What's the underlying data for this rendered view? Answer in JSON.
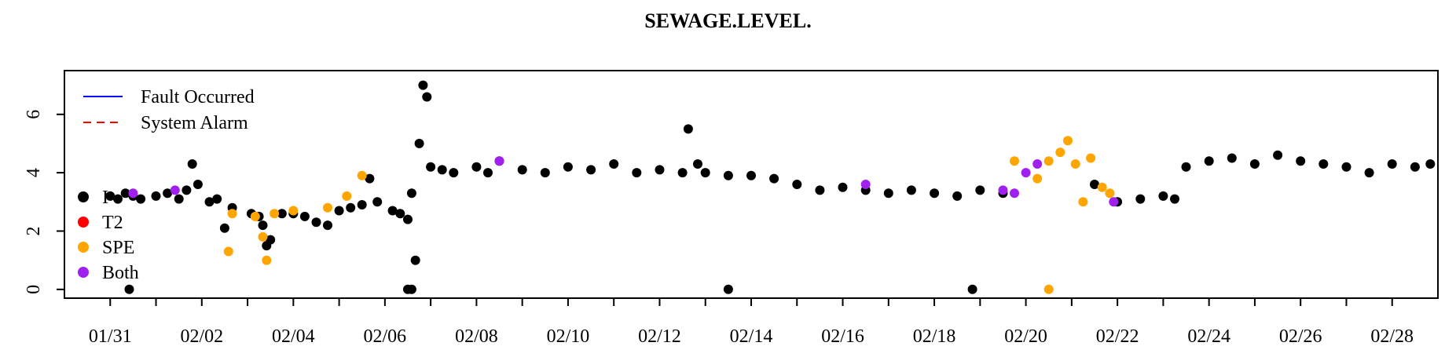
{
  "chart_data": {
    "type": "scatter",
    "title": "SEWAGE.LEVEL.",
    "xlabel": "",
    "ylabel": "",
    "x_range": [
      "01/30",
      "03/01"
    ],
    "ylim": [
      -0.3,
      7.5
    ],
    "x_ticks": [
      "01/31",
      "02/02",
      "02/04",
      "02/06",
      "02/08",
      "02/10",
      "02/12",
      "02/14",
      "02/16",
      "02/18",
      "02/20",
      "02/22",
      "02/24",
      "02/26",
      "02/28"
    ],
    "y_ticks": [
      0,
      2,
      4,
      6
    ],
    "grid": false,
    "legend_lines": [
      {
        "label": "Fault Occurred",
        "color": "#0000ff",
        "style": "solid"
      },
      {
        "label": "System Alarm",
        "color": "#ff0000",
        "style": "dashed"
      }
    ],
    "legend_points": [
      {
        "label": "I",
        "color": "#000000"
      },
      {
        "label": "T2",
        "color": "#ff0000"
      },
      {
        "label": "SPE",
        "color": "#ffa500"
      },
      {
        "label": "Both",
        "color": "#a020f0"
      }
    ],
    "series": [
      {
        "name": "I",
        "color": "#000000",
        "points": [
          [
            "01/31 00:00",
            3.2
          ],
          [
            "01/31 04:00",
            3.1
          ],
          [
            "01/31 08:00",
            3.3
          ],
          [
            "01/31 12:00",
            3.2
          ],
          [
            "01/31 16:00",
            3.1
          ],
          [
            "02/01 00:00",
            3.2
          ],
          [
            "02/01 06:00",
            3.3
          ],
          [
            "02/01 12:00",
            3.1
          ],
          [
            "02/01 16:00",
            3.4
          ],
          [
            "02/01 19:00",
            4.3
          ],
          [
            "02/01 22:00",
            3.6
          ],
          [
            "02/02 04:00",
            3.0
          ],
          [
            "02/02 08:00",
            3.1
          ],
          [
            "02/02 12:00",
            2.1
          ],
          [
            "02/02 16:00",
            2.8
          ],
          [
            "02/03 02:00",
            2.6
          ],
          [
            "02/03 06:00",
            2.5
          ],
          [
            "02/03 08:00",
            2.2
          ],
          [
            "02/03 10:00",
            1.5
          ],
          [
            "02/03 12:00",
            1.7
          ],
          [
            "02/03 18:00",
            2.6
          ],
          [
            "02/04 00:00",
            2.6
          ],
          [
            "02/04 06:00",
            2.5
          ],
          [
            "02/04 12:00",
            2.3
          ],
          [
            "02/04 18:00",
            2.2
          ],
          [
            "02/05 00:00",
            2.7
          ],
          [
            "02/05 06:00",
            2.8
          ],
          [
            "02/05 12:00",
            2.9
          ],
          [
            "02/05 16:00",
            3.8
          ],
          [
            "02/05 20:00",
            3.0
          ],
          [
            "02/06 04:00",
            2.7
          ],
          [
            "02/06 08:00",
            2.6
          ],
          [
            "02/06 12:00",
            2.4
          ],
          [
            "02/06 14:00",
            3.3
          ],
          [
            "02/06 18:00",
            5.0
          ],
          [
            "02/06 20:00",
            7.0
          ],
          [
            "02/06 22:00",
            6.6
          ],
          [
            "02/07 00:00",
            4.2
          ],
          [
            "02/07 06:00",
            4.1
          ],
          [
            "02/07 12:00",
            4.0
          ],
          [
            "02/08 00:00",
            4.2
          ],
          [
            "02/08 06:00",
            4.0
          ],
          [
            "02/08 12:00",
            4.4
          ],
          [
            "02/09 00:00",
            4.1
          ],
          [
            "02/09 12:00",
            4.0
          ],
          [
            "02/10 00:00",
            4.2
          ],
          [
            "02/10 12:00",
            4.1
          ],
          [
            "02/11 00:00",
            4.3
          ],
          [
            "02/11 12:00",
            4.0
          ],
          [
            "02/12 00:00",
            4.1
          ],
          [
            "02/12 12:00",
            4.0
          ],
          [
            "02/12 15:00",
            5.5
          ],
          [
            "02/12 20:00",
            4.3
          ],
          [
            "02/13 00:00",
            4.0
          ],
          [
            "02/13 12:00",
            3.9
          ],
          [
            "02/14 00:00",
            3.9
          ],
          [
            "02/14 12:00",
            3.8
          ],
          [
            "02/15 00:00",
            3.6
          ],
          [
            "02/15 12:00",
            3.4
          ],
          [
            "02/16 00:00",
            3.5
          ],
          [
            "02/16 12:00",
            3.4
          ],
          [
            "02/17 00:00",
            3.3
          ],
          [
            "02/17 12:00",
            3.4
          ],
          [
            "02/18 00:00",
            3.3
          ],
          [
            "02/18 12:00",
            3.2
          ],
          [
            "02/19 00:00",
            3.4
          ],
          [
            "02/19 12:00",
            3.3
          ],
          [
            "02/21 12:00",
            3.6
          ],
          [
            "02/22 00:00",
            3.0
          ],
          [
            "02/22 12:00",
            3.1
          ],
          [
            "02/23 00:00",
            3.2
          ],
          [
            "02/23 06:00",
            3.1
          ],
          [
            "02/23 12:00",
            4.2
          ],
          [
            "02/24 00:00",
            4.4
          ],
          [
            "02/24 12:00",
            4.5
          ],
          [
            "02/25 00:00",
            4.3
          ],
          [
            "02/25 12:00",
            4.6
          ],
          [
            "02/26 00:00",
            4.4
          ],
          [
            "02/26 12:00",
            4.3
          ],
          [
            "02/27 00:00",
            4.2
          ],
          [
            "02/27 12:00",
            4.0
          ],
          [
            "02/28 00:00",
            4.3
          ],
          [
            "02/28 12:00",
            4.2
          ],
          [
            "02/28 20:00",
            4.3
          ],
          [
            "01/31 10:00",
            0.0
          ],
          [
            "02/06 12:00",
            0.0
          ],
          [
            "02/06 14:00",
            0.0
          ],
          [
            "02/06 16:00",
            1.0
          ],
          [
            "02/13 12:00",
            0.0
          ],
          [
            "02/18 20:00",
            0.0
          ]
        ]
      },
      {
        "name": "T2",
        "color": "#ff0000",
        "points": []
      },
      {
        "name": "SPE",
        "color": "#ffa500",
        "points": [
          [
            "02/02 14:00",
            1.3
          ],
          [
            "02/02 16:00",
            2.6
          ],
          [
            "02/03 04:00",
            2.5
          ],
          [
            "02/03 08:00",
            1.8
          ],
          [
            "02/03 10:00",
            1.0
          ],
          [
            "02/03 14:00",
            2.6
          ],
          [
            "02/04 00:00",
            2.7
          ],
          [
            "02/04 18:00",
            2.8
          ],
          [
            "02/05 04:00",
            3.2
          ],
          [
            "02/05 12:00",
            3.9
          ],
          [
            "02/19 18:00",
            4.4
          ],
          [
            "02/20 06:00",
            3.8
          ],
          [
            "02/20 12:00",
            4.4
          ],
          [
            "02/20 18:00",
            4.7
          ],
          [
            "02/20 22:00",
            5.1
          ],
          [
            "02/21 02:00",
            4.3
          ],
          [
            "02/21 06:00",
            3.0
          ],
          [
            "02/21 10:00",
            4.5
          ],
          [
            "02/21 16:00",
            3.5
          ],
          [
            "02/21 20:00",
            3.3
          ],
          [
            "02/20 12:00",
            0.0
          ]
        ]
      },
      {
        "name": "Both",
        "color": "#a020f0",
        "points": [
          [
            "01/31 12:00",
            3.3
          ],
          [
            "02/01 10:00",
            3.4
          ],
          [
            "02/08 12:00",
            4.4
          ],
          [
            "02/16 12:00",
            3.6
          ],
          [
            "02/19 12:00",
            3.4
          ],
          [
            "02/19 18:00",
            3.3
          ],
          [
            "02/20 00:00",
            4.0
          ],
          [
            "02/20 06:00",
            4.3
          ],
          [
            "02/21 22:00",
            3.0
          ]
        ]
      }
    ]
  }
}
